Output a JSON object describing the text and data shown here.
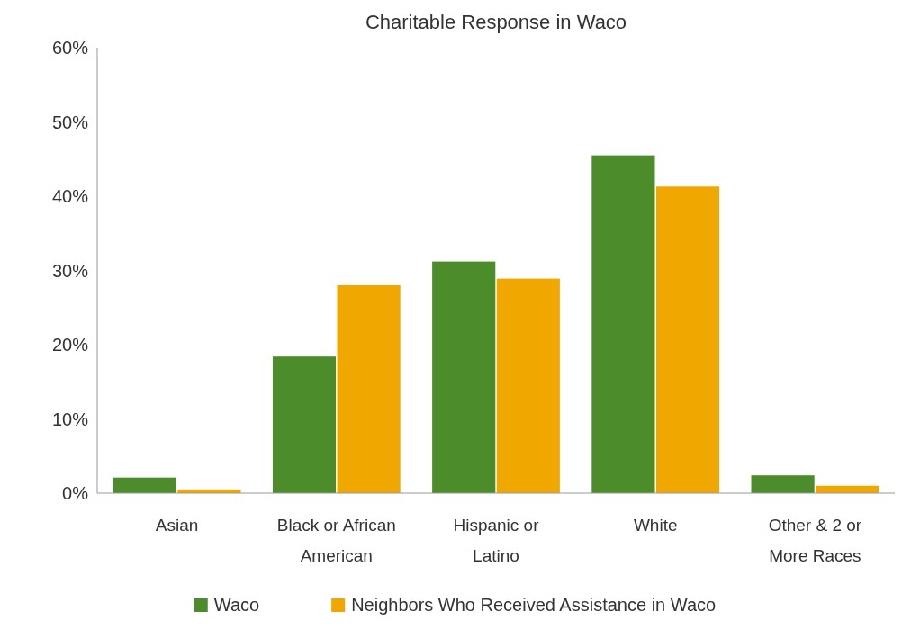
{
  "chart_data": {
    "type": "bar",
    "title": "Charitable Response in Waco",
    "categories": [
      "Asian",
      "Black or African American",
      "Hispanic or Latino",
      "White",
      "Other & 2 or More Races"
    ],
    "series": [
      {
        "name": "Waco",
        "color": "#4c8c2b",
        "values": [
          2.1,
          18.4,
          31.2,
          45.5,
          2.4
        ]
      },
      {
        "name": "Neighbors Who Received Assistance in Waco",
        "color": "#f0a800",
        "values": [
          0.5,
          28.0,
          28.9,
          41.3,
          1.0
        ]
      }
    ],
    "ylim": [
      0,
      60
    ],
    "yticks": [
      {
        "value": 0,
        "label": "0%"
      },
      {
        "value": 10,
        "label": "10%"
      },
      {
        "value": 20,
        "label": "20%"
      },
      {
        "value": 30,
        "label": "30%"
      },
      {
        "value": 40,
        "label": "40%"
      },
      {
        "value": 50,
        "label": "50%"
      },
      {
        "value": 60,
        "label": "60%"
      }
    ],
    "grid": false,
    "legend": "bottom"
  }
}
